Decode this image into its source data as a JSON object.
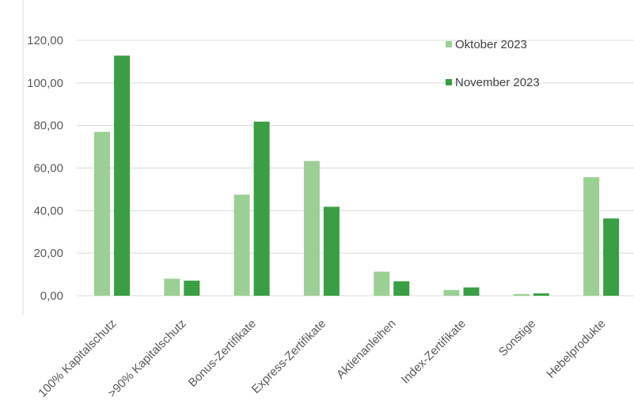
{
  "chart_data": {
    "type": "bar",
    "title": "",
    "xlabel": "",
    "ylabel": "",
    "ylim": [
      0,
      120
    ],
    "ytick_step": 20,
    "grid": true,
    "legend_position": "top-right",
    "categories": [
      "100% Kapitalschutz",
      ">90% Kapitalschutz",
      "Bonus-Zertifikate",
      "Express-Zertifikate",
      "Aktienanleihen",
      "Index-Zertifikate",
      "Sonstige",
      "Hebelprodukte"
    ],
    "series": [
      {
        "name": "Oktober 2023",
        "color": "#9ccf94",
        "values": [
          77.0,
          8.0,
          47.5,
          63.3,
          11.3,
          2.7,
          0.8,
          55.7
        ]
      },
      {
        "name": "November 2023",
        "color": "#3a9e45",
        "values": [
          112.8,
          7.1,
          81.8,
          41.8,
          6.8,
          3.9,
          1.1,
          36.3
        ]
      }
    ],
    "ytick_labels": [
      "0,00",
      "20,00",
      "40,00",
      "60,00",
      "80,00",
      "100,00",
      "120,00"
    ]
  }
}
